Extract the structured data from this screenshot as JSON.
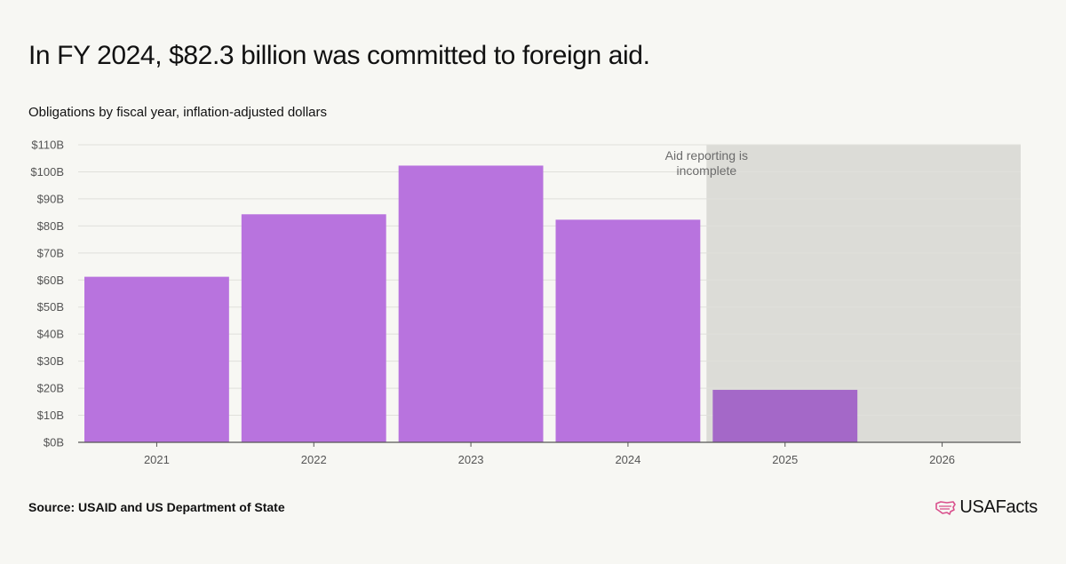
{
  "title": "In FY 2024, $82.3 billion was committed to foreign aid.",
  "subtitle": "Obligations by fiscal year, inflation-adjusted dollars",
  "source": "Source: USAID and US Department of State",
  "logo_text": "USAFacts",
  "colors": {
    "bar": "#b873de",
    "bar_incomplete": "#a468c8",
    "shade": "#dcdcd7",
    "grid": "#e0e0db",
    "axis": "#555555",
    "logo_mark": "#d94f8c"
  },
  "chart_data": {
    "type": "bar",
    "title": "In FY 2024, $82.3 billion was committed to foreign aid.",
    "subtitle": "Obligations by fiscal year, inflation-adjusted dollars",
    "xlabel": "",
    "ylabel": "",
    "categories": [
      "2021",
      "2022",
      "2023",
      "2024",
      "2025",
      "2026"
    ],
    "values": [
      61.2,
      84.3,
      102.3,
      82.3,
      19.4,
      0
    ],
    "unit": "billion USD",
    "ylim": [
      0,
      110
    ],
    "yticks": [
      0,
      10,
      20,
      30,
      40,
      50,
      60,
      70,
      80,
      90,
      100,
      110
    ],
    "ytick_labels": [
      "$0B",
      "$10B",
      "$20B",
      "$30B",
      "$40B",
      "$50B",
      "$60B",
      "$70B",
      "$80B",
      "$90B",
      "$100B",
      "$110B"
    ],
    "grid": true,
    "legend": "none",
    "shaded_region": {
      "from_category": "2025",
      "to_category": "2026",
      "annotation_lines": [
        "Aid reporting is",
        "incomplete"
      ]
    }
  }
}
